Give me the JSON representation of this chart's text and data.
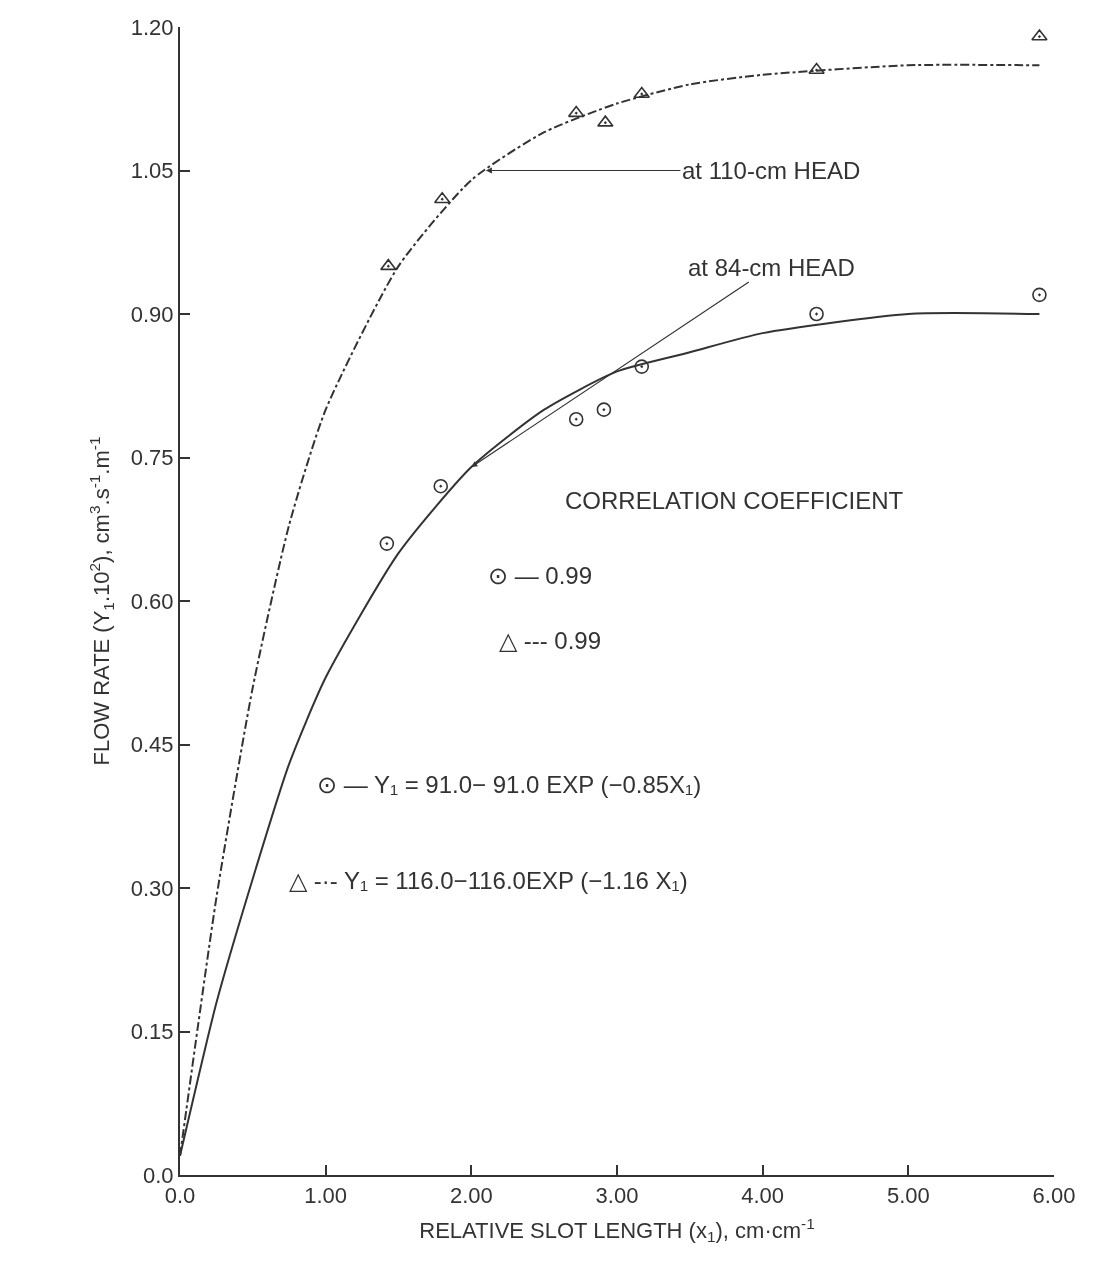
{
  "chart_data": {
    "type": "scatter",
    "xlabel": "RELATIVE SLOT LENGTH (x$_{1}$), cm·cm$^{-1}$",
    "ylabel": "FLOW RATE (Y$_{1}$.10$^{2}$), cm$^{3}$.s$^{-1}$.m$^{-1}$",
    "xlim": [
      0,
      6
    ],
    "ylim": [
      0,
      1.2
    ],
    "xticks": [
      {
        "value": 0,
        "label": "0.0"
      },
      {
        "value": 1,
        "label": "1.00"
      },
      {
        "value": 2,
        "label": "2.00"
      },
      {
        "value": 3,
        "label": "3.00"
      },
      {
        "value": 4,
        "label": "4.00"
      },
      {
        "value": 5,
        "label": "5.00"
      },
      {
        "value": 6,
        "label": "6.00"
      }
    ],
    "yticks": [
      {
        "value": 0,
        "label": "0.0"
      },
      {
        "value": 0.15,
        "label": "0.15"
      },
      {
        "value": 0.3,
        "label": "0.30"
      },
      {
        "value": 0.45,
        "label": "0.45"
      },
      {
        "value": 0.6,
        "label": "0.60"
      },
      {
        "value": 0.75,
        "label": "0.75"
      },
      {
        "value": 0.9,
        "label": "0.90"
      },
      {
        "value": 1.05,
        "label": "1.05"
      },
      {
        "value": 1.2,
        "label": "1.20"
      }
    ],
    "series": [
      {
        "marker": "triangle",
        "color": "#333333",
        "x": [
          1.43,
          1.8,
          2.72,
          2.92,
          3.17,
          4.37,
          5.9
        ],
        "values": [
          0.95,
          1.02,
          1.11,
          1.1,
          1.13,
          1.155,
          1.19
        ]
      },
      {
        "marker": "circle",
        "color": "#333333",
        "x": [
          1.42,
          1.79,
          2.72,
          2.91,
          3.17,
          4.37,
          5.9
        ],
        "values": [
          0.66,
          0.72,
          0.79,
          0.8,
          0.845,
          0.9,
          0.92
        ]
      },
      {
        "type": "line",
        "line_style": "dashed",
        "color": "#333333",
        "x": [
          0,
          0.25,
          0.5,
          0.75,
          1,
          1.5,
          2,
          2.5,
          3,
          3.5,
          4,
          5,
          5.9
        ],
        "values": [
          0.02,
          0.29,
          0.51,
          0.68,
          0.8,
          0.95,
          1.04,
          1.09,
          1.12,
          1.14,
          1.15,
          1.16,
          1.16
        ]
      },
      {
        "type": "line",
        "line_style": "solid",
        "color": "#333333",
        "x": [
          0,
          0.25,
          0.5,
          0.75,
          1,
          1.5,
          2,
          2.5,
          3,
          3.5,
          4,
          5,
          5.9
        ],
        "values": [
          0.02,
          0.18,
          0.31,
          0.43,
          0.52,
          0.65,
          0.74,
          0.8,
          0.84,
          0.86,
          0.88,
          0.9,
          0.9
        ]
      }
    ],
    "annotations": [
      {
        "text": "at 110-cm HEAD",
        "x": 2.1,
        "y": 1.05
      },
      {
        "text": "at 84-cm HEAD",
        "x": 2,
        "y": 0.74
      },
      "CORRELATION COEFFICIENT",
      "⊙ — 0.99",
      "△ --- 0.99",
      "⊙ — Y₁ = 91.0− 91.0 EXP (−0.85X₁)",
      "△ -·- Y₁ = 116.0−116.0EXP (−1.16 X₁)"
    ]
  }
}
